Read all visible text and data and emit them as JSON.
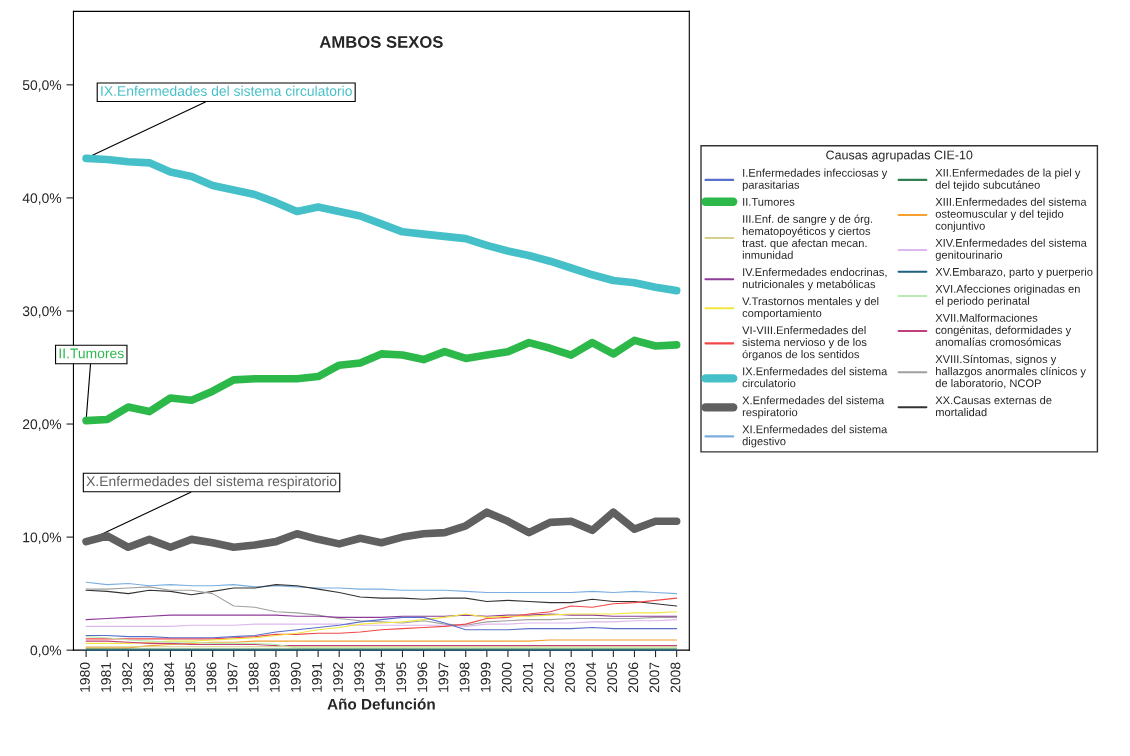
{
  "chart_data": {
    "type": "line",
    "title": "AMBOS SEXOS",
    "xlabel": "Año Defunción",
    "legend_title": "Causas agrupadas CIE-10",
    "legend": "right",
    "grid": false,
    "marker": "none",
    "line_style": "solid",
    "categories": [
      "1980",
      "1981",
      "1982",
      "1983",
      "1984",
      "1985",
      "1986",
      "1987",
      "1988",
      "1989",
      "1990",
      "1991",
      "1992",
      "1993",
      "1994",
      "1995",
      "1996",
      "1997",
      "1998",
      "1999",
      "2000",
      "2001",
      "2002",
      "2003",
      "2004",
      "2005",
      "2006",
      "2007",
      "2008"
    ],
    "ylim": [
      0,
      56.5
    ],
    "yticks": [
      {
        "value": 0,
        "label": "0,0%"
      },
      {
        "value": 10,
        "label": "10,0%"
      },
      {
        "value": 20,
        "label": "20,0%"
      },
      {
        "value": 30,
        "label": "30,0%"
      },
      {
        "value": 40,
        "label": "40,0%"
      },
      {
        "value": 50,
        "label": "50,0%"
      }
    ],
    "annotations": [
      {
        "text": "IX.Enfermedades del sistema circulatorio",
        "x": "1980",
        "y": 43.5
      },
      {
        "text": "II.Tumores",
        "x": "1980",
        "y": 20.3
      },
      {
        "text": "X.Enfermedades del sistema respiratorio",
        "x": "1980",
        "y": 9.6
      }
    ],
    "series": [
      {
        "name": "I.Enfermedades infecciosas y parasitarias",
        "color": "#5a6fc8",
        "values": [
          1.3,
          1.3,
          1.2,
          1.2,
          1.1,
          1.1,
          1.1,
          1.2,
          1.3,
          1.6,
          1.8,
          2.0,
          2.2,
          2.5,
          2.7,
          2.9,
          2.9,
          2.4,
          1.8,
          1.8,
          1.8,
          1.9,
          1.9,
          1.9,
          2.0,
          1.9,
          1.9,
          1.9,
          1.9
        ]
      },
      {
        "name": "II.Tumores",
        "color": "#2db84a",
        "values": [
          20.3,
          20.4,
          21.5,
          21.1,
          22.3,
          22.1,
          22.9,
          23.9,
          24.0,
          24.0,
          24.0,
          24.2,
          25.2,
          25.4,
          26.2,
          26.1,
          25.7,
          26.4,
          25.8,
          26.1,
          26.4,
          27.2,
          26.7,
          26.1,
          27.2,
          26.2,
          27.4,
          26.9,
          27.0
        ]
      },
      {
        "name": "III.Enf. de sangre y de órg. hematopoyéticos y ciertos trast. que afectan mecan. inmunidad",
        "color": "#d6d08a",
        "values": [
          0.3,
          0.3,
          0.3,
          0.3,
          0.3,
          0.3,
          0.3,
          0.3,
          0.3,
          0.3,
          0.3,
          0.3,
          0.3,
          0.3,
          0.3,
          0.3,
          0.3,
          0.3,
          0.3,
          0.3,
          0.3,
          0.3,
          0.3,
          0.3,
          0.3,
          0.3,
          0.3,
          0.3,
          0.3
        ]
      },
      {
        "name": "IV.Enfermedades endocrinas, nutricionales y metabólicas",
        "color": "#8e3b9a",
        "values": [
          2.7,
          2.8,
          2.9,
          3.0,
          3.1,
          3.1,
          3.1,
          3.1,
          3.1,
          3.1,
          3.0,
          3.0,
          2.9,
          2.9,
          2.9,
          3.0,
          3.0,
          3.0,
          3.1,
          3.0,
          3.1,
          3.1,
          3.2,
          3.1,
          3.1,
          3.0,
          3.0,
          3.0,
          3.0
        ]
      },
      {
        "name": "V.Trastornos mentales y del comportamiento",
        "color": "#f2e640",
        "values": [
          0.6,
          0.6,
          0.6,
          0.7,
          0.8,
          0.8,
          0.9,
          1.0,
          1.1,
          1.3,
          1.5,
          1.8,
          2.0,
          2.3,
          2.4,
          2.5,
          2.7,
          2.9,
          3.2,
          2.9,
          3.0,
          3.0,
          3.1,
          3.2,
          3.2,
          3.2,
          3.3,
          3.3,
          3.4
        ]
      },
      {
        "name": "VI-VIII.Enfermedades del sistema nervioso y de los órganos de los sentidos",
        "color": "#f04848",
        "values": [
          1.0,
          1.0,
          1.0,
          1.0,
          1.0,
          1.0,
          1.0,
          1.1,
          1.2,
          1.4,
          1.4,
          1.5,
          1.5,
          1.6,
          1.8,
          1.9,
          2.0,
          2.1,
          2.3,
          2.8,
          2.9,
          3.2,
          3.4,
          3.9,
          3.8,
          4.1,
          4.2,
          4.4,
          4.6
        ]
      },
      {
        "name": "IX.Enfermedades del sistema circulatorio",
        "color": "#46c0c8",
        "values": [
          43.5,
          43.4,
          43.2,
          43.1,
          42.3,
          41.9,
          41.1,
          40.7,
          40.3,
          39.6,
          38.8,
          39.2,
          38.8,
          38.4,
          37.7,
          37.0,
          36.8,
          36.6,
          36.4,
          35.8,
          35.3,
          34.9,
          34.4,
          33.8,
          33.2,
          32.7,
          32.5,
          32.1,
          31.8
        ]
      },
      {
        "name": "X.Enfermedades del sistema respiratorio",
        "color": "#606060",
        "values": [
          9.6,
          10.1,
          9.1,
          9.8,
          9.1,
          9.8,
          9.5,
          9.1,
          9.3,
          9.6,
          10.3,
          9.8,
          9.4,
          9.9,
          9.5,
          10.0,
          10.3,
          10.4,
          11.0,
          12.2,
          11.4,
          10.4,
          11.3,
          11.4,
          10.6,
          12.2,
          10.7,
          11.4,
          11.4
        ]
      },
      {
        "name": "XI.Enfermedades del sistema digestivo",
        "color": "#7aaee0",
        "values": [
          6.0,
          5.8,
          5.9,
          5.7,
          5.8,
          5.7,
          5.7,
          5.8,
          5.6,
          5.7,
          5.6,
          5.5,
          5.5,
          5.4,
          5.4,
          5.3,
          5.3,
          5.3,
          5.2,
          5.1,
          5.1,
          5.1,
          5.1,
          5.1,
          5.2,
          5.1,
          5.2,
          5.1,
          5.0
        ]
      },
      {
        "name": "XII.Enfermedades de la piel y del tejido subcutáneo",
        "color": "#2f7f50",
        "values": [
          0.1,
          0.1,
          0.1,
          0.1,
          0.1,
          0.1,
          0.1,
          0.1,
          0.1,
          0.1,
          0.1,
          0.1,
          0.1,
          0.1,
          0.1,
          0.1,
          0.1,
          0.1,
          0.1,
          0.1,
          0.1,
          0.1,
          0.1,
          0.1,
          0.1,
          0.1,
          0.1,
          0.1,
          0.1
        ]
      },
      {
        "name": "XIII.Enfermedades del sistema osteomuscular y del tejido conjuntivo",
        "color": "#f5a030",
        "values": [
          0.2,
          0.2,
          0.2,
          0.4,
          0.5,
          0.6,
          0.7,
          0.7,
          0.8,
          0.8,
          0.8,
          0.8,
          0.8,
          0.8,
          0.8,
          0.8,
          0.8,
          0.8,
          0.8,
          0.8,
          0.8,
          0.8,
          0.9,
          0.9,
          0.9,
          0.9,
          0.9,
          0.9,
          0.9
        ]
      },
      {
        "name": "XIV.Enfermedades del sistema genitourinario",
        "color": "#dcb8f0",
        "values": [
          2.1,
          2.1,
          2.1,
          2.1,
          2.1,
          2.2,
          2.2,
          2.2,
          2.3,
          2.3,
          2.3,
          2.3,
          2.3,
          2.2,
          2.2,
          2.2,
          2.2,
          2.2,
          2.1,
          2.3,
          2.3,
          2.4,
          2.4,
          2.4,
          2.5,
          2.5,
          2.6,
          2.6,
          2.7
        ]
      },
      {
        "name": "XV.Embarazo, parto y puerperio",
        "color": "#1f5f80",
        "values": [
          0.0,
          0.0,
          0.0,
          0.0,
          0.0,
          0.0,
          0.0,
          0.0,
          0.0,
          0.0,
          0.0,
          0.0,
          0.0,
          0.0,
          0.0,
          0.0,
          0.0,
          0.0,
          0.0,
          0.0,
          0.0,
          0.0,
          0.0,
          0.0,
          0.0,
          0.0,
          0.0,
          0.0,
          0.0
        ]
      },
      {
        "name": "XVI.Afecciones originadas en el periodo perinatal",
        "color": "#b8ecb0",
        "values": [
          1.2,
          1.1,
          0.9,
          0.8,
          0.7,
          0.7,
          0.6,
          0.6,
          0.6,
          0.5,
          0.2,
          0.2,
          0.2,
          0.2,
          0.2,
          0.2,
          0.2,
          0.2,
          0.2,
          0.2,
          0.2,
          0.2,
          0.2,
          0.2,
          0.2,
          0.2,
          0.2,
          0.2,
          0.2
        ]
      },
      {
        "name": "XVII.Malformaciones congénitas, deformidades y anomalías cromosómicas",
        "color": "#c0407a",
        "values": [
          0.8,
          0.8,
          0.7,
          0.6,
          0.6,
          0.5,
          0.5,
          0.5,
          0.5,
          0.4,
          0.4,
          0.4,
          0.4,
          0.4,
          0.4,
          0.4,
          0.4,
          0.4,
          0.4,
          0.4,
          0.4,
          0.4,
          0.4,
          0.4,
          0.4,
          0.4,
          0.4,
          0.4,
          0.4
        ]
      },
      {
        "name": "XVIII.Síntomas, signos y hallazgos anormales clínicos y de laboratorio, NCOP",
        "color": "#a0a0a0",
        "values": [
          5.4,
          5.4,
          5.5,
          5.6,
          5.3,
          5.3,
          5.0,
          3.9,
          3.8,
          3.4,
          3.3,
          3.1,
          2.8,
          2.6,
          2.5,
          2.4,
          2.6,
          2.3,
          2.2,
          2.5,
          2.6,
          2.7,
          2.7,
          2.8,
          2.8,
          2.8,
          2.8,
          2.9,
          2.9
        ]
      },
      {
        "name": "XX.Causas externas de mortalidad",
        "color": "#333333",
        "values": [
          5.3,
          5.2,
          5.0,
          5.3,
          5.2,
          4.9,
          5.2,
          5.5,
          5.5,
          5.8,
          5.7,
          5.4,
          5.1,
          4.7,
          4.6,
          4.6,
          4.5,
          4.6,
          4.6,
          4.3,
          4.4,
          4.3,
          4.2,
          4.2,
          4.5,
          4.3,
          4.3,
          4.1,
          3.9
        ]
      }
    ]
  }
}
